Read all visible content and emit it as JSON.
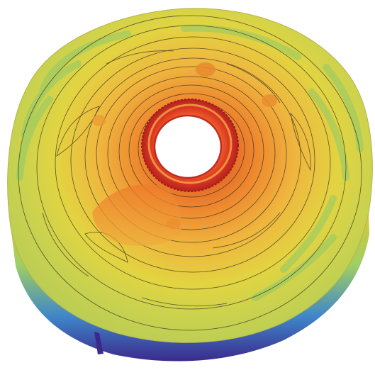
{
  "figure": {
    "kind": "3d-surface-render",
    "surface_shape": "annulus",
    "contour_lines": true,
    "colormap": [
      "#3b2a8c",
      "#3e7fd0",
      "#7ec96a",
      "#d8d03e",
      "#f0a338",
      "#e0552c",
      "#c92a25"
    ],
    "background": "#ffffff"
  }
}
